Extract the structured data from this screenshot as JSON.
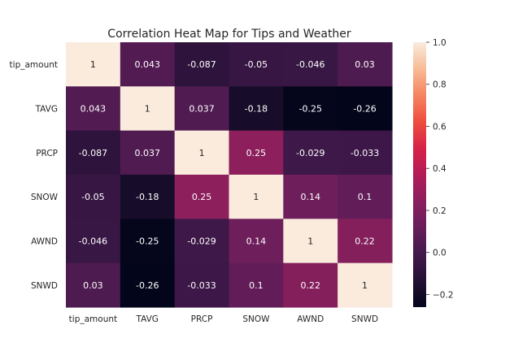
{
  "chart_data": {
    "type": "heatmap",
    "title": "Correlation Heat Map for Tips and Weather",
    "xlabel": "",
    "ylabel": "",
    "rows": [
      "tip_amount",
      "TAVG",
      "PRCP",
      "SNOW",
      "AWND",
      "SNWD"
    ],
    "columns": [
      "tip_amount",
      "TAVG",
      "PRCP",
      "SNOW",
      "AWND",
      "SNWD"
    ],
    "values": [
      [
        1,
        0.043,
        -0.087,
        -0.05,
        -0.046,
        0.03
      ],
      [
        0.043,
        1,
        0.037,
        -0.18,
        -0.25,
        -0.26
      ],
      [
        -0.087,
        0.037,
        1,
        0.25,
        -0.029,
        -0.033
      ],
      [
        -0.05,
        -0.18,
        0.25,
        1,
        0.14,
        0.1
      ],
      [
        -0.046,
        -0.25,
        -0.029,
        0.14,
        1,
        0.22
      ],
      [
        0.03,
        -0.26,
        -0.033,
        0.1,
        0.22,
        1
      ]
    ],
    "labels": [
      [
        "1",
        "0.043",
        "-0.087",
        "-0.05",
        "-0.046",
        "0.03"
      ],
      [
        "0.043",
        "1",
        "0.037",
        "-0.18",
        "-0.25",
        "-0.26"
      ],
      [
        "-0.087",
        "0.037",
        "1",
        "0.25",
        "-0.029",
        "-0.033"
      ],
      [
        "-0.05",
        "-0.18",
        "0.25",
        "1",
        "0.14",
        "0.1"
      ],
      [
        "-0.046",
        "-0.25",
        "-0.029",
        "0.14",
        "1",
        "0.22"
      ],
      [
        "0.03",
        "-0.26",
        "-0.033",
        "0.1",
        "0.22",
        "1"
      ]
    ],
    "colormap": "rocket",
    "colorbar": {
      "range": [
        -0.26,
        1.0
      ],
      "ticks": [
        -0.2,
        0.0,
        0.2,
        0.4,
        0.6,
        0.8,
        1.0
      ],
      "tick_labels": [
        "−0.2",
        "0.0",
        "0.2",
        "0.4",
        "0.6",
        "0.8",
        "1.0"
      ],
      "placement": "right"
    },
    "grid": false
  }
}
